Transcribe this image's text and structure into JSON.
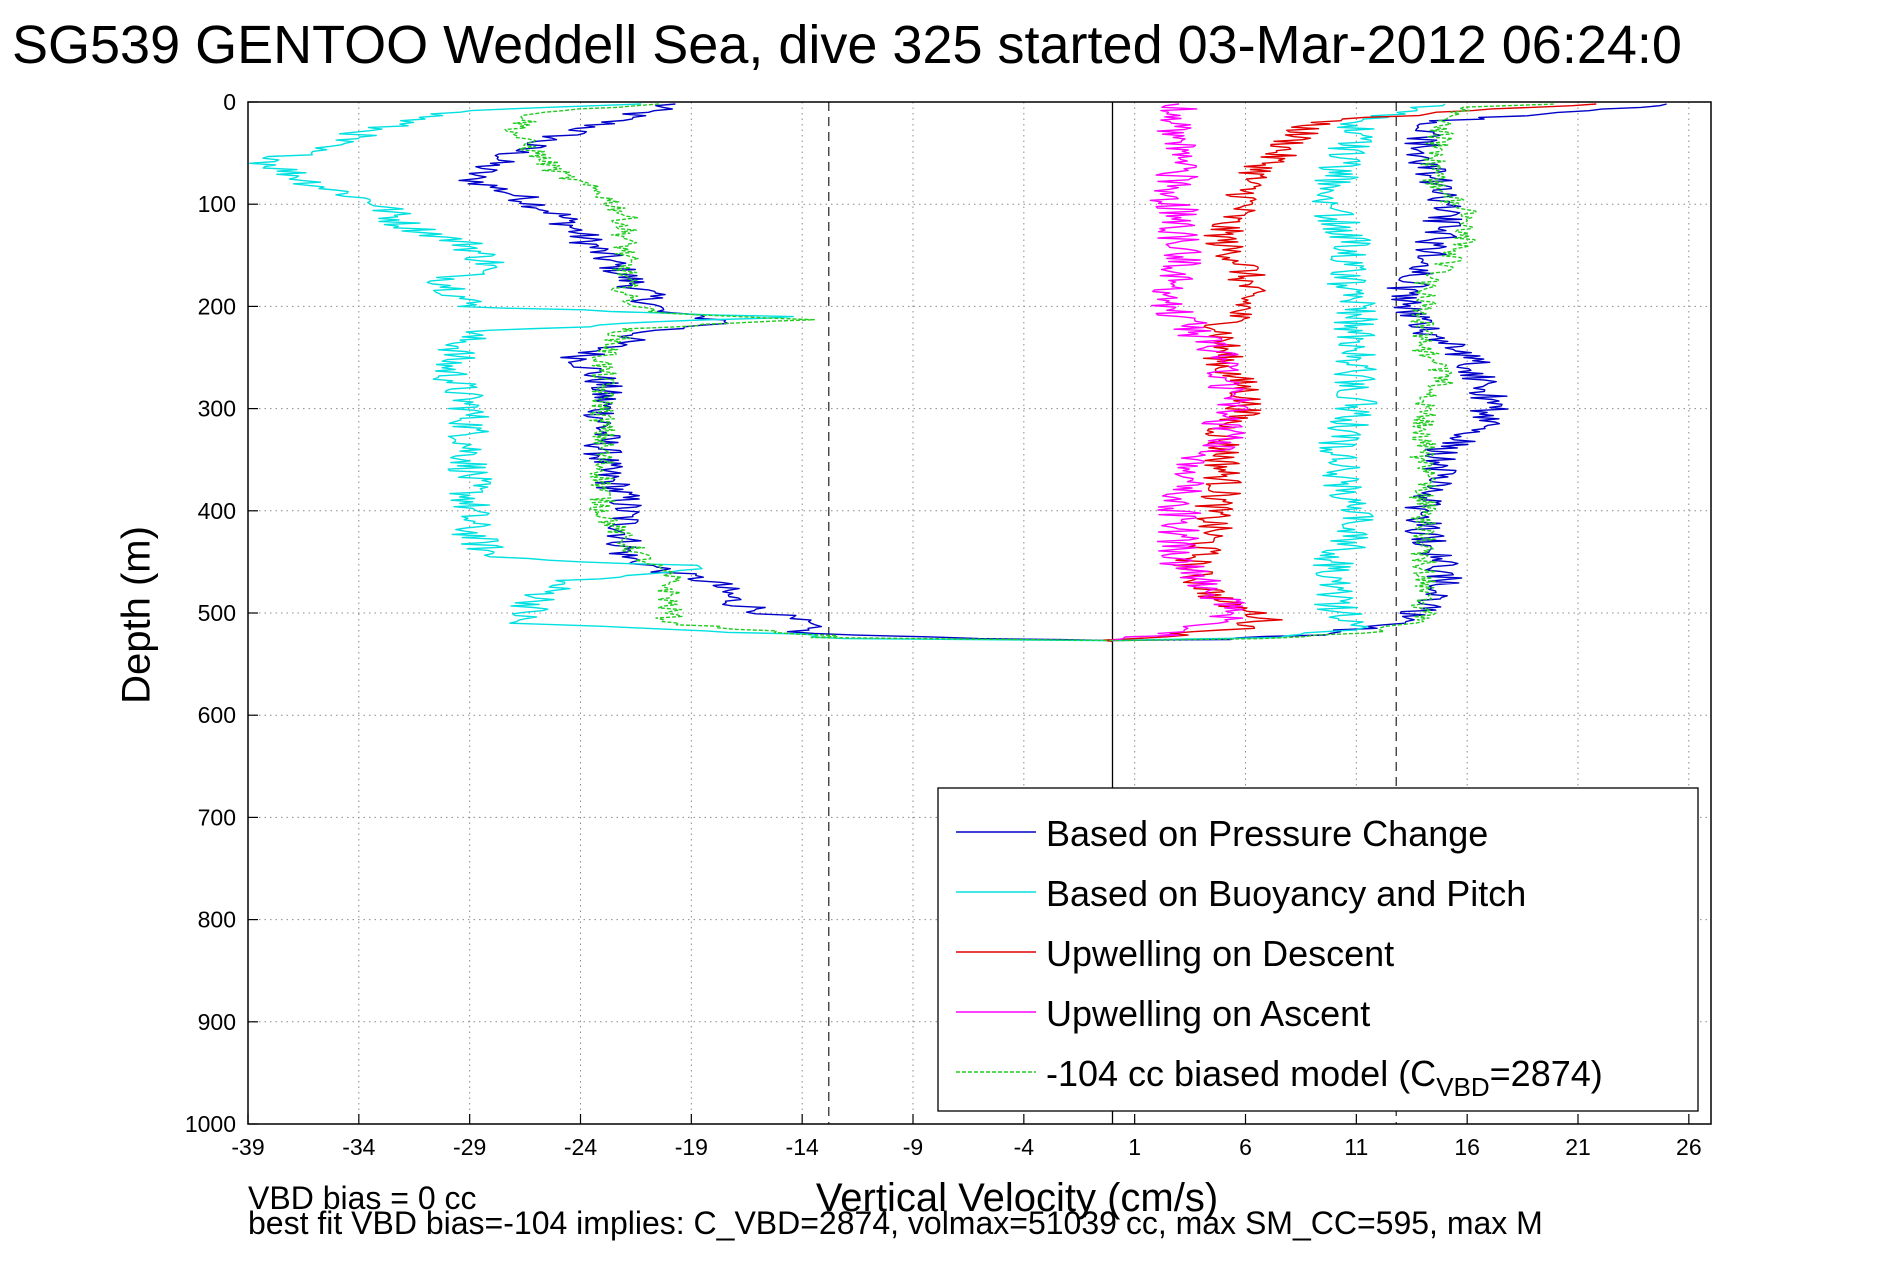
{
  "title": "SG539 GENTOO Weddell Sea, dive 325 started 03-Mar-2012 06:24:0",
  "footer": {
    "line1": "VBD bias = 0 cc",
    "line2": "best fit VBD bias=-104 implies: C_VBD=2874, volmax=51039 cc, max SM_CC=595, max M"
  },
  "chart_data": {
    "type": "line",
    "xlabel": "Vertical Velocity (cm/s)",
    "ylabel": "Depth (m)",
    "xlim": [
      -39,
      27
    ],
    "ylim": [
      0,
      1000
    ],
    "y_reversed": true,
    "xticks": [
      -39,
      -34,
      -29,
      -24,
      -19,
      -14,
      -9,
      -4,
      1,
      6,
      11,
      16,
      21,
      26
    ],
    "yticks": [
      0,
      100,
      200,
      300,
      400,
      500,
      600,
      700,
      800,
      900,
      1000
    ],
    "grid": true,
    "legend_position": "bottom-right",
    "reference_lines": [
      {
        "x": -12.8,
        "style": "dashed",
        "color": "#333333"
      },
      {
        "x": 0,
        "style": "solid",
        "color": "#000000"
      },
      {
        "x": 12.8,
        "style": "dashed",
        "color": "#333333"
      }
    ],
    "series": [
      {
        "name": "Based on Pressure Change",
        "color": "#0000c8",
        "style": "solid",
        "noise": 0.9,
        "points": [
          [
            -20,
            2
          ],
          [
            -22,
            15
          ],
          [
            -26,
            40
          ],
          [
            -28,
            60
          ],
          [
            -29,
            75
          ],
          [
            -27,
            90
          ],
          [
            -25,
            110
          ],
          [
            -24,
            130
          ],
          [
            -23,
            150
          ],
          [
            -22,
            170
          ],
          [
            -21,
            190
          ],
          [
            -20.5,
            205
          ],
          [
            -17,
            215
          ],
          [
            -21,
            225
          ],
          [
            -24,
            250
          ],
          [
            -23,
            275
          ],
          [
            -23,
            300
          ],
          [
            -23,
            330
          ],
          [
            -23,
            360
          ],
          [
            -22,
            390
          ],
          [
            -22,
            420
          ],
          [
            -22,
            445
          ],
          [
            -20,
            460
          ],
          [
            -18,
            470
          ],
          [
            -17,
            490
          ],
          [
            -14,
            510
          ],
          [
            -14,
            520
          ],
          [
            -6,
            525
          ],
          [
            0,
            527
          ],
          [
            5,
            526
          ],
          [
            10,
            520
          ],
          [
            13.5,
            505
          ],
          [
            15,
            480
          ],
          [
            15,
            450
          ],
          [
            14,
            420
          ],
          [
            14,
            400
          ],
          [
            14.5,
            370
          ],
          [
            15,
            340
          ],
          [
            17,
            310
          ],
          [
            17,
            280
          ],
          [
            16,
            250
          ],
          [
            14,
            220
          ],
          [
            13,
            190
          ],
          [
            14,
            160
          ],
          [
            14.5,
            140
          ],
          [
            15,
            110
          ],
          [
            14.5,
            80
          ],
          [
            14,
            50
          ],
          [
            14,
            20
          ],
          [
            25,
            2
          ]
        ]
      },
      {
        "name": "Based on Buoyancy and Pitch",
        "color": "#00e0e0",
        "style": "solid",
        "noise": 1.0,
        "points": [
          [
            -21,
            2
          ],
          [
            -30,
            10
          ],
          [
            -33,
            25
          ],
          [
            -36,
            45
          ],
          [
            -38,
            60
          ],
          [
            -36,
            80
          ],
          [
            -33,
            100
          ],
          [
            -32,
            120
          ],
          [
            -29,
            140
          ],
          [
            -28,
            160
          ],
          [
            -30,
            175
          ],
          [
            -29,
            200
          ],
          [
            -15,
            210
          ],
          [
            -29,
            225
          ],
          [
            -30,
            260
          ],
          [
            -29,
            300
          ],
          [
            -29,
            340
          ],
          [
            -29,
            380
          ],
          [
            -29,
            420
          ],
          [
            -28,
            445
          ],
          [
            -18,
            455
          ],
          [
            -25,
            470
          ],
          [
            -26,
            490
          ],
          [
            -27,
            510
          ],
          [
            -13,
            522
          ],
          [
            -13,
            525
          ],
          [
            0,
            527
          ],
          [
            7,
            524
          ],
          [
            11,
            515
          ],
          [
            10,
            490
          ],
          [
            10,
            450
          ],
          [
            11,
            420
          ],
          [
            10.5,
            380
          ],
          [
            10,
            340
          ],
          [
            11,
            300
          ],
          [
            11,
            260
          ],
          [
            11,
            230
          ],
          [
            11,
            200
          ],
          [
            10.5,
            170
          ],
          [
            11,
            140
          ],
          [
            10,
            110
          ],
          [
            10,
            80
          ],
          [
            10.5,
            50
          ],
          [
            11,
            20
          ],
          [
            15,
            2
          ]
        ]
      },
      {
        "name": "Upwelling on Descent",
        "color": "#e00000",
        "style": "solid",
        "noise": 0.9,
        "points": [
          [
            22,
            2
          ],
          [
            15,
            10
          ],
          [
            9,
            20
          ],
          [
            8,
            40
          ],
          [
            7,
            60
          ],
          [
            6,
            80
          ],
          [
            6,
            100
          ],
          [
            5,
            120
          ],
          [
            5,
            140
          ],
          [
            6,
            160
          ],
          [
            6,
            180
          ],
          [
            6,
            200
          ],
          [
            5,
            220
          ],
          [
            5,
            240
          ],
          [
            5,
            260
          ],
          [
            6,
            280
          ],
          [
            6,
            300
          ],
          [
            5,
            320
          ],
          [
            5,
            340
          ],
          [
            5,
            360
          ],
          [
            5,
            380
          ],
          [
            4.5,
            400
          ],
          [
            4.5,
            420
          ],
          [
            4,
            440
          ],
          [
            3.5,
            455
          ],
          [
            4,
            470
          ],
          [
            5,
            490
          ],
          [
            7,
            505
          ],
          [
            6,
            515
          ],
          [
            1,
            525
          ],
          [
            0,
            528
          ]
        ]
      },
      {
        "name": "Upwelling on Ascent",
        "color": "#ff00ff",
        "style": "solid",
        "noise": 1.0,
        "points": [
          [
            0,
            527
          ],
          [
            3,
            520
          ],
          [
            5,
            505
          ],
          [
            5,
            490
          ],
          [
            4,
            470
          ],
          [
            3,
            450
          ],
          [
            3,
            430
          ],
          [
            3,
            410
          ],
          [
            3,
            390
          ],
          [
            3.5,
            370
          ],
          [
            4,
            350
          ],
          [
            5,
            330
          ],
          [
            5,
            310
          ],
          [
            5.5,
            290
          ],
          [
            5,
            270
          ],
          [
            5,
            250
          ],
          [
            4,
            230
          ],
          [
            3,
            210
          ],
          [
            2.5,
            190
          ],
          [
            3,
            170
          ],
          [
            3,
            150
          ],
          [
            3,
            130
          ],
          [
            3,
            110
          ],
          [
            2.5,
            90
          ],
          [
            3,
            70
          ],
          [
            3,
            50
          ],
          [
            3,
            30
          ],
          [
            3,
            10
          ],
          [
            3,
            2
          ]
        ]
      },
      {
        "name": "-104 cc biased model (C_VBD=2874)",
        "color": "#22cc22",
        "style": "dashed",
        "noise": 0.6,
        "points": [
          [
            -20,
            2
          ],
          [
            -26,
            10
          ],
          [
            -27,
            30
          ],
          [
            -26,
            50
          ],
          [
            -25,
            70
          ],
          [
            -23,
            90
          ],
          [
            -22,
            110
          ],
          [
            -22,
            130
          ],
          [
            -22,
            150
          ],
          [
            -22,
            170
          ],
          [
            -22,
            190
          ],
          [
            -21,
            205
          ],
          [
            -14,
            213
          ],
          [
            -22,
            222
          ],
          [
            -23,
            250
          ],
          [
            -23,
            280
          ],
          [
            -23,
            310
          ],
          [
            -23,
            340
          ],
          [
            -23,
            370
          ],
          [
            -23,
            400
          ],
          [
            -22,
            430
          ],
          [
            -21,
            450
          ],
          [
            -20,
            465
          ],
          [
            -20,
            480
          ],
          [
            -20,
            495
          ],
          [
            -20,
            510
          ],
          [
            -13,
            522
          ],
          [
            -13,
            524
          ],
          [
            0,
            527
          ],
          [
            7,
            525
          ],
          [
            12,
            518
          ],
          [
            14,
            505
          ],
          [
            14,
            480
          ],
          [
            14,
            450
          ],
          [
            14,
            420
          ],
          [
            14,
            390
          ],
          [
            14,
            360
          ],
          [
            14,
            330
          ],
          [
            14,
            300
          ],
          [
            15,
            270
          ],
          [
            14,
            240
          ],
          [
            14,
            210
          ],
          [
            14,
            180
          ],
          [
            15,
            160
          ],
          [
            16,
            130
          ],
          [
            16,
            110
          ],
          [
            14.5,
            80
          ],
          [
            14.5,
            50
          ],
          [
            15,
            20
          ],
          [
            16,
            5
          ],
          [
            20,
            2
          ]
        ]
      }
    ]
  }
}
